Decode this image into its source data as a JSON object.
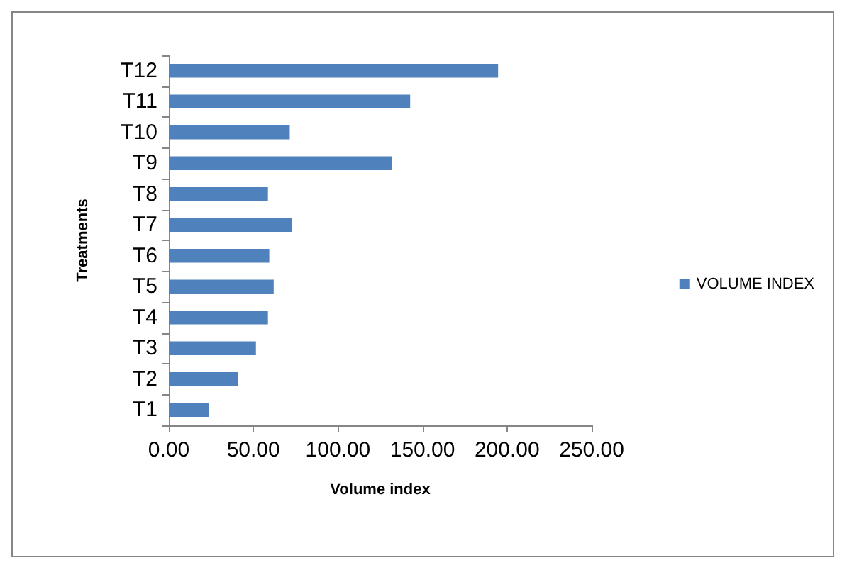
{
  "chart_data": {
    "type": "bar",
    "orientation": "horizontal",
    "xlabel": "Volume index",
    "ylabel": "Treatments",
    "categories": [
      "T12",
      "T11",
      "T10",
      "T9",
      "T8",
      "T7",
      "T6",
      "T5",
      "T4",
      "T3",
      "T2",
      "T1"
    ],
    "series": [
      {
        "name": "VOLUME INDEX",
        "color": "#4f81bd",
        "values": [
          194.7,
          142.7,
          71.5,
          131.9,
          58.6,
          72.8,
          59.4,
          62,
          58.6,
          51.5,
          40.9,
          23.7
        ]
      }
    ],
    "xlim": [
      0,
      250
    ],
    "xticks": [
      {
        "value": 0,
        "label": "0.00"
      },
      {
        "value": 50,
        "label": "50.00"
      },
      {
        "value": 100,
        "label": "100.00"
      },
      {
        "value": 150,
        "label": "150.00"
      },
      {
        "value": 200,
        "label": "200.00"
      },
      {
        "value": 250,
        "label": "250.00"
      }
    ],
    "grid": false,
    "legend": "right"
  }
}
